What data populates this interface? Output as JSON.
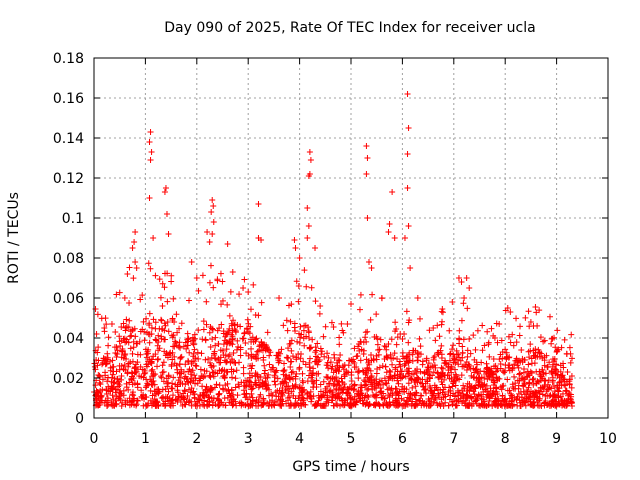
{
  "chart_data": {
    "type": "scatter",
    "title": "Day 090 of 2025, Rate Of TEC Index for receiver ucla",
    "xlabel": "GPS time / hours",
    "ylabel": "ROTI / TECUs",
    "xlim": [
      0,
      10
    ],
    "ylim": [
      0,
      0.18
    ],
    "x_ticks": [
      "0",
      "1",
      "2",
      "3",
      "4",
      "5",
      "6",
      "7",
      "8",
      "9",
      "10"
    ],
    "y_ticks": [
      "0",
      "0.02",
      "0.04",
      "0.06",
      "0.08",
      "0.1",
      "0.12",
      "0.14",
      "0.16",
      "0.18"
    ],
    "grid": true,
    "marker": "+",
    "color": "#ff0000",
    "x_data_max": 9.3,
    "series": [
      {
        "name": "ROTI",
        "notable_points": [
          [
            1.1,
            0.143
          ],
          [
            1.08,
            0.138
          ],
          [
            1.12,
            0.133
          ],
          [
            1.1,
            0.129
          ],
          [
            1.08,
            0.11
          ],
          [
            1.15,
            0.09
          ],
          [
            1.4,
            0.115
          ],
          [
            1.38,
            0.113
          ],
          [
            1.42,
            0.102
          ],
          [
            1.45,
            0.092
          ],
          [
            0.8,
            0.093
          ],
          [
            0.78,
            0.088
          ],
          [
            0.75,
            0.085
          ],
          [
            0.8,
            0.078
          ],
          [
            0.83,
            0.075
          ],
          [
            2.3,
            0.109
          ],
          [
            2.32,
            0.106
          ],
          [
            2.28,
            0.103
          ],
          [
            2.33,
            0.098
          ],
          [
            2.3,
            0.092
          ],
          [
            2.2,
            0.093
          ],
          [
            2.25,
            0.088
          ],
          [
            2.6,
            0.087
          ],
          [
            3.2,
            0.107
          ],
          [
            3.2,
            0.09
          ],
          [
            3.25,
            0.089
          ],
          [
            3.9,
            0.089
          ],
          [
            3.92,
            0.085
          ],
          [
            4.0,
            0.08
          ],
          [
            4.2,
            0.133
          ],
          [
            4.22,
            0.129
          ],
          [
            4.2,
            0.122
          ],
          [
            4.18,
            0.121
          ],
          [
            4.15,
            0.105
          ],
          [
            4.18,
            0.096
          ],
          [
            4.15,
            0.09
          ],
          [
            4.3,
            0.085
          ],
          [
            5.3,
            0.136
          ],
          [
            5.32,
            0.13
          ],
          [
            5.3,
            0.122
          ],
          [
            5.32,
            0.1
          ],
          [
            5.35,
            0.078
          ],
          [
            5.4,
            0.075
          ],
          [
            5.8,
            0.113
          ],
          [
            5.75,
            0.097
          ],
          [
            5.73,
            0.093
          ],
          [
            5.85,
            0.09
          ],
          [
            6.1,
            0.162
          ],
          [
            6.12,
            0.145
          ],
          [
            6.1,
            0.132
          ],
          [
            6.1,
            0.115
          ],
          [
            6.12,
            0.096
          ],
          [
            6.05,
            0.09
          ],
          [
            6.15,
            0.075
          ],
          [
            6.3,
            0.06
          ],
          [
            7.1,
            0.07
          ],
          [
            7.15,
            0.068
          ],
          [
            7.25,
            0.07
          ],
          [
            7.3,
            0.065
          ],
          [
            7.2,
            0.06
          ],
          [
            8.05,
            0.055
          ],
          [
            8.1,
            0.053
          ],
          [
            8.5,
            0.048
          ],
          [
            8.55,
            0.046
          ],
          [
            9.0,
            0.033
          ],
          [
            9.2,
            0.032
          ],
          [
            9.3,
            0.006
          ],
          [
            0.05,
            0.042
          ],
          [
            0.2,
            0.045
          ],
          [
            0.6,
            0.06
          ],
          [
            0.65,
            0.072
          ],
          [
            1.9,
            0.078
          ],
          [
            2.0,
            0.07
          ],
          [
            2.7,
            0.073
          ],
          [
            2.9,
            0.065
          ],
          [
            3.0,
            0.063
          ],
          [
            3.6,
            0.06
          ],
          [
            4.4,
            0.056
          ],
          [
            5.0,
            0.057
          ],
          [
            5.6,
            0.06
          ],
          [
            6.6,
            0.045
          ],
          [
            7.8,
            0.04
          ]
        ]
      }
    ]
  }
}
